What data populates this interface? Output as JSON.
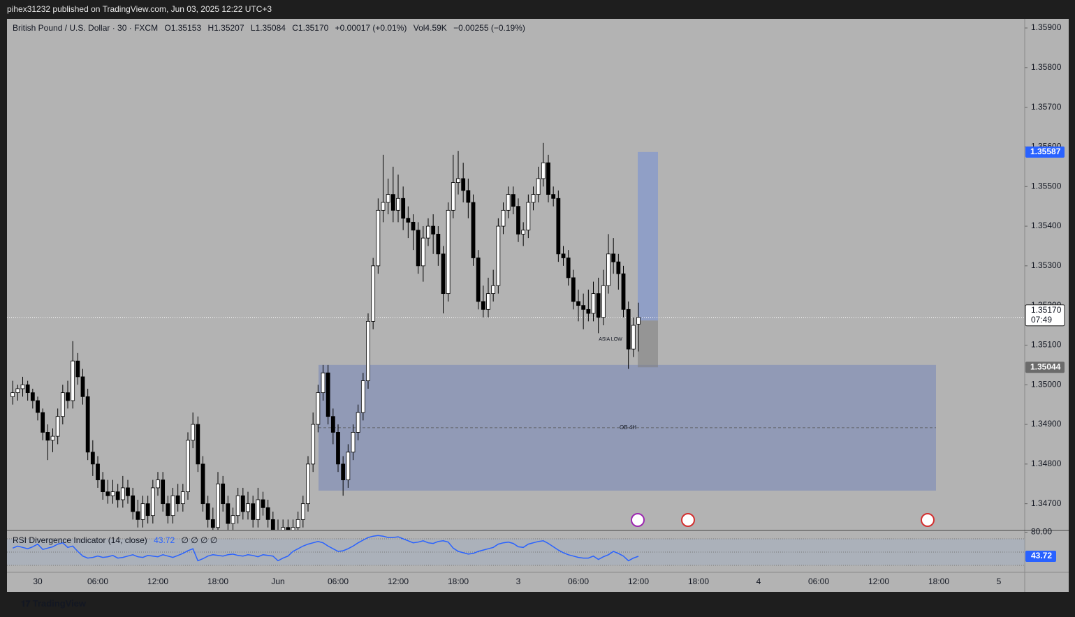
{
  "header": "pihex31232 published on TradingView.com, Jun 03, 2025 12:22 UTC+3",
  "footer": {
    "brand": "TradingView"
  },
  "chart_data": {
    "type": "candlestick",
    "title": "British Pound / U.S. Dollar · 30 · FXCM",
    "legend": {
      "open": "O1.35153",
      "high": "H1.35207",
      "low": "L1.35084",
      "close": "C1.35170",
      "change": "+0.00017 (+0.01%)",
      "volume": "Vol4.59K",
      "change2": "−0.00255 (−0.19%)"
    },
    "up_color": "#ffffff",
    "down_color": "#000000",
    "ylim": [
      1.34636,
      1.35923
    ],
    "yticks": [
      {
        "value": 1.359,
        "label": "1.35900"
      },
      {
        "value": 1.358,
        "label": "1.35800"
      },
      {
        "value": 1.357,
        "label": "1.35700"
      },
      {
        "value": 1.356,
        "label": "1.35600"
      },
      {
        "value": 1.355,
        "label": "1.35500"
      },
      {
        "value": 1.354,
        "label": "1.35400"
      },
      {
        "value": 1.353,
        "label": "1.35300"
      },
      {
        "value": 1.352,
        "label": "1.35200"
      },
      {
        "value": 1.351,
        "label": "1.35100"
      },
      {
        "value": 1.35,
        "label": "1.35000"
      },
      {
        "value": 1.349,
        "label": "1.34900"
      },
      {
        "value": 1.348,
        "label": "1.34800"
      },
      {
        "value": 1.347,
        "label": "1.34700"
      }
    ],
    "xticks": [
      "30",
      "06:00",
      "12:00",
      "18:00",
      "Jun",
      "06:00",
      "12:00",
      "18:00",
      "3",
      "06:00",
      "12:00",
      "18:00",
      "4",
      "06:00",
      "12:00",
      "18:00",
      "5"
    ],
    "candles": [
      [
        1.3497,
        1.3501,
        1.3495,
        1.3498
      ],
      [
        1.3498,
        1.35,
        1.3496,
        1.3499
      ],
      [
        1.3499,
        1.3502,
        1.3497,
        1.35
      ],
      [
        1.35,
        1.3501,
        1.3496,
        1.3498
      ],
      [
        1.3498,
        1.3499,
        1.3494,
        1.3496
      ],
      [
        1.3496,
        1.3497,
        1.3491,
        1.3493
      ],
      [
        1.3493,
        1.3494,
        1.3486,
        1.3488
      ],
      [
        1.3488,
        1.349,
        1.3481,
        1.3486
      ],
      [
        1.3486,
        1.3489,
        1.3483,
        1.3487
      ],
      [
        1.3487,
        1.3494,
        1.3485,
        1.3492
      ],
      [
        1.3492,
        1.35,
        1.349,
        1.3498
      ],
      [
        1.3498,
        1.3501,
        1.3494,
        1.3496
      ],
      [
        1.3496,
        1.3511,
        1.3494,
        1.3506
      ],
      [
        1.3506,
        1.3508,
        1.35,
        1.3502
      ],
      [
        1.3502,
        1.3504,
        1.3495,
        1.3497
      ],
      [
        1.3497,
        1.3499,
        1.3481,
        1.3483
      ],
      [
        1.3483,
        1.3486,
        1.3477,
        1.348
      ],
      [
        1.348,
        1.3482,
        1.3474,
        1.3476
      ],
      [
        1.3476,
        1.3478,
        1.3471,
        1.3473
      ],
      [
        1.3473,
        1.3476,
        1.347,
        1.3472
      ],
      [
        1.3472,
        1.3476,
        1.347,
        1.3473
      ],
      [
        1.3473,
        1.3475,
        1.3469,
        1.3471
      ],
      [
        1.3471,
        1.3477,
        1.3469,
        1.3474
      ],
      [
        1.3474,
        1.3476,
        1.347,
        1.3472
      ],
      [
        1.3472,
        1.3474,
        1.3466,
        1.3468
      ],
      [
        1.3468,
        1.3471,
        1.3464,
        1.3466
      ],
      [
        1.3466,
        1.3472,
        1.3464,
        1.347
      ],
      [
        1.347,
        1.3472,
        1.3465,
        1.3467
      ],
      [
        1.3467,
        1.3476,
        1.3465,
        1.3474
      ],
      [
        1.3474,
        1.3478,
        1.3472,
        1.3476
      ],
      [
        1.3476,
        1.3478,
        1.3468,
        1.347
      ],
      [
        1.347,
        1.3472,
        1.3465,
        1.3467
      ],
      [
        1.3467,
        1.3474,
        1.3465,
        1.3472
      ],
      [
        1.3472,
        1.3475,
        1.3468,
        1.347
      ],
      [
        1.347,
        1.3475,
        1.3468,
        1.3473
      ],
      [
        1.3473,
        1.3488,
        1.3471,
        1.3486
      ],
      [
        1.3486,
        1.3493,
        1.3484,
        1.349
      ],
      [
        1.349,
        1.3492,
        1.3478,
        1.348
      ],
      [
        1.348,
        1.3482,
        1.3468,
        1.347
      ],
      [
        1.347,
        1.3472,
        1.3464,
        1.3466
      ],
      [
        1.3466,
        1.3469,
        1.3462,
        1.3464
      ],
      [
        1.3464,
        1.3478,
        1.3462,
        1.3475
      ],
      [
        1.3475,
        1.3477,
        1.3468,
        1.347
      ],
      [
        1.347,
        1.3472,
        1.3463,
        1.3465
      ],
      [
        1.3465,
        1.3469,
        1.3463,
        1.3467
      ],
      [
        1.3467,
        1.3474,
        1.3465,
        1.3472
      ],
      [
        1.3472,
        1.3474,
        1.3466,
        1.3468
      ],
      [
        1.3468,
        1.3473,
        1.3466,
        1.347
      ],
      [
        1.347,
        1.3472,
        1.3464,
        1.3466
      ],
      [
        1.3466,
        1.3474,
        1.3464,
        1.3471
      ],
      [
        1.3471,
        1.3473,
        1.3467,
        1.3469
      ],
      [
        1.3469,
        1.3471,
        1.3464,
        1.3466
      ],
      [
        1.3466,
        1.3468,
        1.3461,
        1.3463
      ],
      [
        1.3463,
        1.3466,
        1.346,
        1.3462
      ],
      [
        1.3462,
        1.3466,
        1.346,
        1.3464
      ],
      [
        1.3464,
        1.3466,
        1.3459,
        1.3461
      ],
      [
        1.3461,
        1.3466,
        1.3459,
        1.3464
      ],
      [
        1.3464,
        1.3468,
        1.3462,
        1.3466
      ],
      [
        1.3466,
        1.3472,
        1.3464,
        1.347
      ],
      [
        1.347,
        1.3482,
        1.3468,
        1.348
      ],
      [
        1.348,
        1.3493,
        1.3478,
        1.349
      ],
      [
        1.349,
        1.35,
        1.3488,
        1.3498
      ],
      [
        1.3498,
        1.3505,
        1.3496,
        1.3503
      ],
      [
        1.3503,
        1.3505,
        1.349,
        1.3492
      ],
      [
        1.3492,
        1.3494,
        1.3485,
        1.3488
      ],
      [
        1.3488,
        1.349,
        1.3478,
        1.348
      ],
      [
        1.348,
        1.3482,
        1.3472,
        1.3476
      ],
      [
        1.3476,
        1.3485,
        1.3474,
        1.3483
      ],
      [
        1.3483,
        1.349,
        1.3481,
        1.3488
      ],
      [
        1.3488,
        1.3495,
        1.3486,
        1.3493
      ],
      [
        1.3493,
        1.3503,
        1.3491,
        1.3501
      ],
      [
        1.3501,
        1.3518,
        1.3499,
        1.3516
      ],
      [
        1.3516,
        1.3532,
        1.3514,
        1.353
      ],
      [
        1.353,
        1.3547,
        1.3528,
        1.3544
      ],
      [
        1.3544,
        1.3558,
        1.3541,
        1.3546
      ],
      [
        1.3546,
        1.3552,
        1.3543,
        1.3548
      ],
      [
        1.3548,
        1.3555,
        1.3541,
        1.3544
      ],
      [
        1.3544,
        1.3553,
        1.3541,
        1.3547
      ],
      [
        1.3547,
        1.355,
        1.3539,
        1.3542
      ],
      [
        1.3542,
        1.3545,
        1.3537,
        1.3541
      ],
      [
        1.3541,
        1.3543,
        1.3534,
        1.3539
      ],
      [
        1.3539,
        1.3541,
        1.3528,
        1.353
      ],
      [
        1.353,
        1.354,
        1.3526,
        1.3537
      ],
      [
        1.3537,
        1.3542,
        1.3535,
        1.354
      ],
      [
        1.354,
        1.3543,
        1.3533,
        1.3538
      ],
      [
        1.3538,
        1.354,
        1.353,
        1.3533
      ],
      [
        1.3533,
        1.3535,
        1.3518,
        1.3523
      ],
      [
        1.3523,
        1.3546,
        1.3521,
        1.3544
      ],
      [
        1.3544,
        1.3558,
        1.3542,
        1.3551
      ],
      [
        1.3551,
        1.3559,
        1.3548,
        1.3552
      ],
      [
        1.3552,
        1.3556,
        1.3546,
        1.3549
      ],
      [
        1.3549,
        1.3552,
        1.3542,
        1.3546
      ],
      [
        1.3546,
        1.3548,
        1.353,
        1.3532
      ],
      [
        1.3532,
        1.3534,
        1.3519,
        1.3521
      ],
      [
        1.3521,
        1.3525,
        1.3517,
        1.3519
      ],
      [
        1.3519,
        1.3527,
        1.3517,
        1.3523
      ],
      [
        1.3523,
        1.3529,
        1.3521,
        1.3525
      ],
      [
        1.3525,
        1.3542,
        1.3523,
        1.354
      ],
      [
        1.354,
        1.3546,
        1.3538,
        1.3544
      ],
      [
        1.3544,
        1.355,
        1.3542,
        1.3548
      ],
      [
        1.3548,
        1.355,
        1.3543,
        1.3545
      ],
      [
        1.3545,
        1.3547,
        1.3536,
        1.3538
      ],
      [
        1.3538,
        1.3541,
        1.3535,
        1.3539
      ],
      [
        1.3539,
        1.3548,
        1.3537,
        1.3546
      ],
      [
        1.3546,
        1.355,
        1.3544,
        1.3548
      ],
      [
        1.3548,
        1.3555,
        1.3546,
        1.3552
      ],
      [
        1.3552,
        1.3561,
        1.355,
        1.3556
      ],
      [
        1.3556,
        1.3558,
        1.3546,
        1.3548
      ],
      [
        1.3548,
        1.355,
        1.3545,
        1.3547
      ],
      [
        1.3547,
        1.3549,
        1.3531,
        1.3533
      ],
      [
        1.3533,
        1.3535,
        1.353,
        1.3532
      ],
      [
        1.3532,
        1.3534,
        1.3525,
        1.3527
      ],
      [
        1.3527,
        1.3529,
        1.3519,
        1.3521
      ],
      [
        1.3521,
        1.3524,
        1.3516,
        1.352
      ],
      [
        1.352,
        1.3523,
        1.3514,
        1.3519
      ],
      [
        1.3519,
        1.3524,
        1.3516,
        1.3518
      ],
      [
        1.3518,
        1.3526,
        1.3516,
        1.3523
      ],
      [
        1.3523,
        1.3527,
        1.3513,
        1.3517
      ],
      [
        1.3517,
        1.3529,
        1.3515,
        1.3525
      ],
      [
        1.3525,
        1.3538,
        1.3523,
        1.3533
      ],
      [
        1.3533,
        1.3537,
        1.3528,
        1.3531
      ],
      [
        1.3531,
        1.3533,
        1.3524,
        1.3528
      ],
      [
        1.3528,
        1.353,
        1.3517,
        1.3519
      ],
      [
        1.3519,
        1.3521,
        1.3504,
        1.3509
      ],
      [
        1.3509,
        1.3517,
        1.3507,
        1.3515
      ],
      [
        1.35153,
        1.35207,
        1.35084,
        1.3517
      ]
    ],
    "last_price": {
      "value": 1.3517,
      "label": "1.35170",
      "countdown": "07:49"
    },
    "position": {
      "target": 1.35587,
      "entry": 1.35162,
      "stop": 1.35044,
      "target_color": "#2962ff"
    },
    "ob_zone": {
      "label": "OB 4H",
      "top": 1.3505,
      "bottom": 1.34733,
      "color": "#7585b8"
    },
    "annotation": "ASIA LOW",
    "rsi": {
      "title": "RSI Divergence Indicator (14, close)",
      "flags": "∅ ∅ ∅ ∅",
      "color": "#2962ff",
      "ylim": [
        19.5,
        82.6
      ],
      "yticks": [
        {
          "value": 80,
          "label": "80.00"
        }
      ],
      "levels": [
        70,
        50,
        30
      ],
      "values": [
        56,
        59,
        57,
        55,
        58,
        62,
        54,
        56,
        58,
        62,
        64,
        57,
        59,
        51,
        44,
        41,
        42,
        44,
        42,
        43,
        45,
        41,
        42,
        44,
        46,
        43,
        42,
        45,
        44,
        43,
        46,
        44,
        42,
        45,
        48,
        52,
        55,
        37,
        40,
        44,
        46,
        45,
        44,
        46,
        47,
        45,
        44,
        46,
        45,
        43,
        46,
        45,
        44,
        37,
        41,
        44,
        51,
        55,
        59,
        62,
        64,
        66,
        64,
        59,
        55,
        51,
        52,
        55,
        59,
        64,
        68,
        72,
        74,
        75,
        74,
        72,
        72,
        73,
        70,
        67,
        64,
        65,
        67,
        64,
        63,
        66,
        67,
        65,
        56,
        51,
        49,
        47,
        48,
        51,
        53,
        55,
        57,
        62,
        64,
        65,
        63,
        58,
        57,
        62,
        64,
        66,
        67,
        63,
        58,
        53,
        49,
        46,
        44,
        42,
        41,
        41,
        44,
        39,
        43,
        46,
        51,
        48,
        44,
        37,
        41,
        43.72
      ]
    }
  }
}
